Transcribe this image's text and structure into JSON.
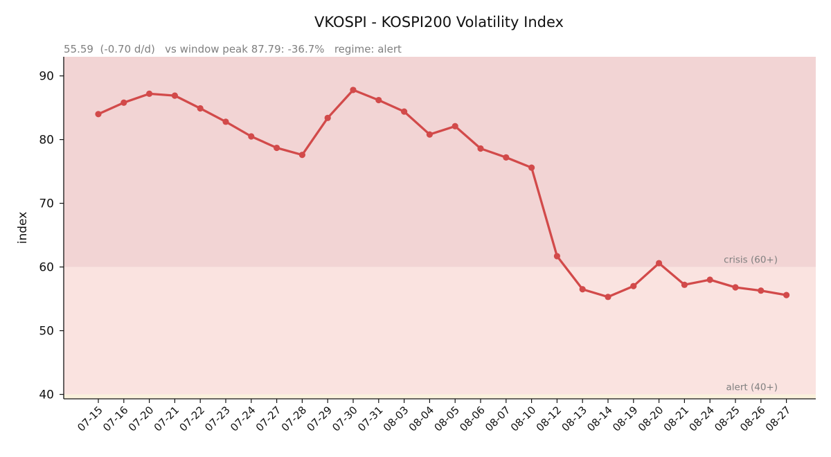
{
  "chart_data": {
    "type": "line",
    "title": "VKOSPI - KOSPI200 Volatility Index",
    "subtitle": "55.59  (-0.70 d/d)   vs window peak 87.79: -36.7%   regime: alert",
    "xlabel": "",
    "ylabel": "index",
    "ylim": [
      39.3,
      93
    ],
    "yticks": [
      40,
      50,
      60,
      70,
      80,
      90
    ],
    "grid": false,
    "categories": [
      "07-15",
      "07-16",
      "07-20",
      "07-21",
      "07-22",
      "07-23",
      "07-24",
      "07-27",
      "07-28",
      "07-29",
      "07-30",
      "07-31",
      "08-03",
      "08-04",
      "08-05",
      "08-06",
      "08-07",
      "08-10",
      "08-12",
      "08-13",
      "08-14",
      "08-19",
      "08-20",
      "08-21",
      "08-24",
      "08-25",
      "08-26",
      "08-27"
    ],
    "series": [
      {
        "values": [
          84.0,
          85.8,
          87.2,
          86.9,
          84.9,
          82.8,
          80.5,
          78.7,
          77.6,
          83.4,
          87.79,
          86.2,
          84.4,
          80.8,
          82.1,
          78.6,
          77.2,
          75.6,
          61.7,
          56.5,
          55.3,
          57.0,
          60.6,
          57.2,
          58.0,
          56.8,
          56.29,
          55.59
        ],
        "color": "#d24a4a"
      }
    ],
    "bands": [
      {
        "from": 60,
        "to": 93,
        "label": "crisis (60+)",
        "color": "#f2d4d4"
      },
      {
        "from": 40,
        "to": 60,
        "label": "alert (40+)",
        "color": "#fae3e0"
      },
      {
        "from": 39.3,
        "to": 40,
        "label": "",
        "color": "#faf1dc"
      }
    ]
  }
}
